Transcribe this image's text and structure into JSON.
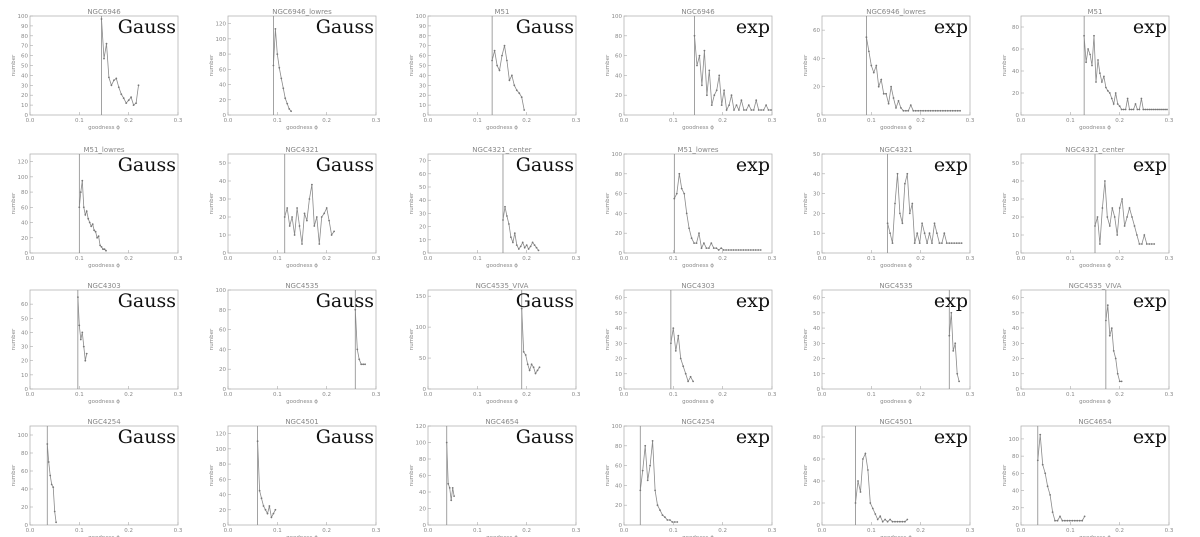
{
  "axis_text": {
    "xlabel": "goodness ϕ",
    "ylabel": "number"
  },
  "colors": {
    "line": "#8a8a8a",
    "axis": "#aaaaaa",
    "marker": "#777777",
    "label": "#111111"
  },
  "chart_data": [
    {
      "type": "line",
      "title": "NGC6946",
      "fit": "Gauss",
      "xlim": [
        0,
        0.3
      ],
      "ylim": [
        0,
        100
      ],
      "yticks": [
        0,
        10,
        20,
        30,
        40,
        50,
        60,
        70,
        80,
        90,
        100
      ],
      "vline": 0.145,
      "x": [
        0.145,
        0.15,
        0.155,
        0.16,
        0.165,
        0.17,
        0.175,
        0.18,
        0.185,
        0.19,
        0.195,
        0.2,
        0.205,
        0.21,
        0.215,
        0.22
      ],
      "y": [
        97,
        57,
        72,
        38,
        30,
        35,
        37,
        28,
        21,
        17,
        12,
        15,
        18,
        10,
        12,
        30
      ]
    },
    {
      "type": "line",
      "title": "NGC6946_lowres",
      "fit": "Gauss",
      "xlim": [
        0,
        0.3
      ],
      "ylim": [
        0,
        130
      ],
      "yticks": [
        0,
        20,
        40,
        60,
        80,
        100,
        120
      ],
      "vline": 0.092,
      "x": [
        0.092,
        0.096,
        0.1,
        0.104,
        0.108,
        0.112,
        0.116,
        0.12,
        0.124,
        0.128
      ],
      "y": [
        65,
        113,
        80,
        62,
        48,
        35,
        22,
        15,
        8,
        5
      ]
    },
    {
      "type": "line",
      "title": "M51",
      "fit": "Gauss",
      "xlim": [
        0,
        0.3
      ],
      "ylim": [
        0,
        100
      ],
      "yticks": [
        0,
        10,
        20,
        30,
        40,
        50,
        60,
        70,
        80,
        90,
        100
      ],
      "vline": 0.13,
      "x": [
        0.13,
        0.135,
        0.14,
        0.145,
        0.15,
        0.155,
        0.16,
        0.165,
        0.17,
        0.175,
        0.18,
        0.185,
        0.19,
        0.195
      ],
      "y": [
        55,
        65,
        50,
        45,
        60,
        70,
        55,
        35,
        40,
        30,
        25,
        22,
        18,
        5
      ]
    },
    {
      "type": "line",
      "title": "NGC6946",
      "fit": "exp",
      "xlim": [
        0,
        0.3
      ],
      "ylim": [
        0,
        100
      ],
      "yticks": [
        0,
        20,
        40,
        60,
        80,
        100
      ],
      "vline": 0.143,
      "x": [
        0.143,
        0.148,
        0.153,
        0.158,
        0.163,
        0.168,
        0.173,
        0.178,
        0.183,
        0.188,
        0.193,
        0.198,
        0.203,
        0.208,
        0.213,
        0.218,
        0.223,
        0.228,
        0.233,
        0.238,
        0.243,
        0.248,
        0.253,
        0.258,
        0.263,
        0.268,
        0.273,
        0.278,
        0.283,
        0.288,
        0.293,
        0.298
      ],
      "y": [
        80,
        50,
        60,
        30,
        65,
        20,
        45,
        10,
        20,
        25,
        40,
        10,
        25,
        5,
        10,
        20,
        5,
        10,
        5,
        15,
        5,
        5,
        10,
        5,
        5,
        15,
        5,
        5,
        5,
        10,
        5,
        5
      ]
    },
    {
      "type": "line",
      "title": "NGC6946_lowres",
      "fit": "exp",
      "xlim": [
        0,
        0.3
      ],
      "ylim": [
        0,
        70
      ],
      "yticks": [
        0,
        20,
        40,
        60
      ],
      "vline": 0.09,
      "x": [
        0.09,
        0.095,
        0.1,
        0.105,
        0.11,
        0.115,
        0.12,
        0.125,
        0.13,
        0.135,
        0.14,
        0.145,
        0.15,
        0.155,
        0.16,
        0.165,
        0.17,
        0.175,
        0.18,
        0.185,
        0.19,
        0.195,
        0.2,
        0.205,
        0.21,
        0.215,
        0.22,
        0.225,
        0.23,
        0.235,
        0.24,
        0.245,
        0.25,
        0.255,
        0.26,
        0.265,
        0.27,
        0.275,
        0.28
      ],
      "y": [
        55,
        45,
        35,
        30,
        35,
        20,
        25,
        15,
        15,
        8,
        20,
        12,
        5,
        10,
        5,
        3,
        3,
        3,
        7,
        3,
        3,
        3,
        3,
        3,
        3,
        3,
        3,
        3,
        3,
        3,
        3,
        3,
        3,
        3,
        3,
        3,
        3,
        3,
        3
      ]
    },
    {
      "type": "line",
      "title": "M51",
      "fit": "exp",
      "xlim": [
        0,
        0.3
      ],
      "ylim": [
        0,
        90
      ],
      "yticks": [
        0,
        20,
        40,
        60,
        80
      ],
      "vline": 0.128,
      "x": [
        0.128,
        0.132,
        0.136,
        0.14,
        0.144,
        0.148,
        0.152,
        0.156,
        0.16,
        0.164,
        0.168,
        0.172,
        0.176,
        0.18,
        0.184,
        0.188,
        0.192,
        0.196,
        0.2,
        0.204,
        0.208,
        0.212,
        0.216,
        0.22,
        0.224,
        0.228,
        0.232,
        0.236,
        0.24,
        0.244,
        0.248,
        0.252,
        0.256,
        0.26,
        0.264,
        0.268,
        0.272,
        0.276,
        0.28,
        0.284,
        0.288,
        0.292,
        0.296
      ],
      "y": [
        72,
        48,
        60,
        55,
        45,
        72,
        30,
        50,
        38,
        30,
        35,
        25,
        22,
        20,
        15,
        10,
        20,
        10,
        8,
        5,
        5,
        5,
        15,
        5,
        5,
        5,
        10,
        5,
        5,
        15,
        5,
        5,
        5,
        5,
        5,
        5,
        5,
        5,
        5,
        5,
        5,
        5,
        5
      ]
    },
    {
      "type": "line",
      "title": "M51_lowres",
      "fit": "Gauss",
      "xlim": [
        0,
        0.3
      ],
      "ylim": [
        0,
        130
      ],
      "yticks": [
        0,
        20,
        40,
        60,
        80,
        100,
        120
      ],
      "vline": 0.1,
      "x": [
        0.1,
        0.103,
        0.106,
        0.109,
        0.112,
        0.115,
        0.118,
        0.121,
        0.124,
        0.127,
        0.13,
        0.133,
        0.136,
        0.139,
        0.142,
        0.145,
        0.148,
        0.151,
        0.154
      ],
      "y": [
        60,
        80,
        95,
        60,
        50,
        55,
        45,
        40,
        35,
        38,
        30,
        28,
        20,
        22,
        10,
        8,
        5,
        5,
        3
      ]
    },
    {
      "type": "line",
      "title": "NGC4321",
      "fit": "Gauss",
      "xlim": [
        0,
        0.3
      ],
      "ylim": [
        0,
        55
      ],
      "yticks": [
        0,
        10,
        20,
        30,
        40,
        50
      ],
      "vline": 0.115,
      "x": [
        0.115,
        0.12,
        0.125,
        0.13,
        0.135,
        0.14,
        0.145,
        0.15,
        0.155,
        0.16,
        0.165,
        0.17,
        0.175,
        0.18,
        0.185,
        0.19,
        0.195,
        0.2,
        0.205,
        0.21,
        0.215
      ],
      "y": [
        20,
        25,
        15,
        20,
        10,
        25,
        15,
        5,
        22,
        18,
        30,
        38,
        15,
        20,
        5,
        20,
        22,
        25,
        18,
        10,
        12
      ]
    },
    {
      "type": "line",
      "title": "NGC4321_center",
      "fit": "Gauss",
      "xlim": [
        0,
        0.3
      ],
      "ylim": [
        0,
        75
      ],
      "yticks": [
        0,
        10,
        20,
        30,
        40,
        50,
        60,
        70
      ],
      "vline": 0.152,
      "x": [
        0.152,
        0.156,
        0.16,
        0.164,
        0.168,
        0.172,
        0.176,
        0.18,
        0.184,
        0.188,
        0.192,
        0.196,
        0.2,
        0.204,
        0.208,
        0.212,
        0.216,
        0.22,
        0.224
      ],
      "y": [
        25,
        35,
        28,
        22,
        12,
        8,
        15,
        6,
        3,
        5,
        8,
        4,
        6,
        3,
        5,
        8,
        6,
        4,
        2
      ]
    },
    {
      "type": "line",
      "title": "M51_lowres",
      "fit": "exp",
      "xlim": [
        0,
        0.3
      ],
      "ylim": [
        0,
        100
      ],
      "yticks": [
        0,
        20,
        40,
        60,
        80,
        100
      ],
      "vline": 0.102,
      "x": [
        0.102,
        0.107,
        0.112,
        0.117,
        0.122,
        0.127,
        0.132,
        0.137,
        0.142,
        0.147,
        0.152,
        0.157,
        0.162,
        0.167,
        0.172,
        0.177,
        0.182,
        0.187,
        0.192,
        0.197,
        0.202,
        0.207,
        0.212,
        0.217,
        0.222,
        0.227,
        0.232,
        0.237,
        0.242,
        0.247,
        0.252,
        0.257,
        0.262,
        0.267,
        0.272,
        0.277
      ],
      "y": [
        55,
        60,
        80,
        65,
        60,
        40,
        25,
        15,
        10,
        10,
        20,
        5,
        10,
        5,
        5,
        10,
        5,
        5,
        3,
        5,
        3,
        3,
        3,
        3,
        3,
        3,
        3,
        3,
        3,
        3,
        3,
        3,
        3,
        3,
        3,
        3
      ]
    },
    {
      "type": "line",
      "title": "NGC4321",
      "fit": "exp",
      "xlim": [
        0,
        0.3
      ],
      "ylim": [
        0,
        50
      ],
      "yticks": [
        0,
        10,
        20,
        30,
        40,
        50
      ],
      "vline": 0.133,
      "x": [
        0.133,
        0.138,
        0.143,
        0.148,
        0.153,
        0.158,
        0.163,
        0.168,
        0.173,
        0.178,
        0.183,
        0.188,
        0.193,
        0.198,
        0.203,
        0.208,
        0.213,
        0.218,
        0.223,
        0.228,
        0.233,
        0.238,
        0.243,
        0.248,
        0.253,
        0.258,
        0.263,
        0.268,
        0.273,
        0.278,
        0.283
      ],
      "y": [
        15,
        10,
        5,
        25,
        40,
        20,
        15,
        35,
        40,
        20,
        25,
        5,
        10,
        5,
        15,
        10,
        5,
        10,
        5,
        15,
        10,
        5,
        5,
        10,
        5,
        5,
        5,
        5,
        5,
        5,
        5
      ]
    },
    {
      "type": "line",
      "title": "NGC4321_center",
      "fit": "exp",
      "xlim": [
        0,
        0.3
      ],
      "ylim": [
        0,
        55
      ],
      "yticks": [
        0,
        10,
        20,
        30,
        40,
        50
      ],
      "vline": 0.15,
      "x": [
        0.15,
        0.155,
        0.16,
        0.165,
        0.17,
        0.175,
        0.18,
        0.185,
        0.19,
        0.195,
        0.2,
        0.205,
        0.21,
        0.215,
        0.22,
        0.225,
        0.23,
        0.235,
        0.24,
        0.245,
        0.25,
        0.255,
        0.26,
        0.265,
        0.27
      ],
      "y": [
        15,
        20,
        5,
        25,
        40,
        20,
        15,
        25,
        20,
        10,
        25,
        30,
        15,
        20,
        25,
        20,
        15,
        10,
        5,
        5,
        10,
        5,
        5,
        5,
        5
      ]
    },
    {
      "type": "line",
      "title": "NGC4303",
      "fit": "Gauss",
      "xlim": [
        0,
        0.3
      ],
      "ylim": [
        0,
        70
      ],
      "yticks": [
        0,
        10,
        20,
        30,
        40,
        50,
        60
      ],
      "vline": 0.097,
      "x": [
        0.097,
        0.1,
        0.103,
        0.106,
        0.109,
        0.112,
        0.115
      ],
      "y": [
        65,
        45,
        35,
        40,
        30,
        20,
        25
      ]
    },
    {
      "type": "line",
      "title": "NGC4535",
      "fit": "Gauss",
      "xlim": [
        0,
        0.3
      ],
      "ylim": [
        0,
        100
      ],
      "yticks": [
        0,
        20,
        40,
        60,
        80,
        100
      ],
      "vline": 0.258,
      "x": [
        0.258,
        0.262,
        0.266,
        0.27,
        0.274,
        0.278
      ],
      "y": [
        80,
        40,
        30,
        25,
        25,
        25
      ]
    },
    {
      "type": "line",
      "title": "NGC4535_VIVA",
      "fit": "Gauss",
      "xlim": [
        0,
        0.3
      ],
      "ylim": [
        0,
        160
      ],
      "yticks": [
        0,
        50,
        100,
        150
      ],
      "vline": 0.19,
      "x": [
        0.19,
        0.194,
        0.198,
        0.202,
        0.206,
        0.21,
        0.214,
        0.218,
        0.222,
        0.226
      ],
      "y": [
        130,
        60,
        55,
        40,
        30,
        40,
        35,
        25,
        30,
        35
      ]
    },
    {
      "type": "line",
      "title": "NGC4303",
      "fit": "exp",
      "xlim": [
        0,
        0.3
      ],
      "ylim": [
        0,
        65
      ],
      "yticks": [
        0,
        10,
        20,
        30,
        40,
        50,
        60
      ],
      "vline": 0.095,
      "x": [
        0.095,
        0.1,
        0.105,
        0.11,
        0.115,
        0.12,
        0.125,
        0.13,
        0.135,
        0.14
      ],
      "y": [
        30,
        40,
        25,
        35,
        20,
        15,
        10,
        5,
        8,
        5
      ]
    },
    {
      "type": "line",
      "title": "NGC4535",
      "fit": "exp",
      "xlim": [
        0,
        0.3
      ],
      "ylim": [
        0,
        65
      ],
      "yticks": [
        0,
        10,
        20,
        30,
        40,
        50,
        60
      ],
      "vline": 0.258,
      "x": [
        0.258,
        0.262,
        0.266,
        0.27,
        0.274,
        0.278
      ],
      "y": [
        35,
        50,
        25,
        30,
        10,
        5
      ]
    },
    {
      "type": "line",
      "title": "NGC4535_VIVA",
      "fit": "exp",
      "xlim": [
        0,
        0.3
      ],
      "ylim": [
        0,
        65
      ],
      "yticks": [
        0,
        10,
        20,
        30,
        40,
        50,
        60
      ],
      "vline": 0.172,
      "x": [
        0.172,
        0.176,
        0.18,
        0.184,
        0.188,
        0.192,
        0.196,
        0.2,
        0.204
      ],
      "y": [
        45,
        55,
        35,
        40,
        25,
        20,
        10,
        5,
        5
      ]
    },
    {
      "type": "line",
      "title": "NGC4254",
      "fit": "Gauss",
      "xlim": [
        0,
        0.3
      ],
      "ylim": [
        0,
        110
      ],
      "yticks": [
        0,
        20,
        40,
        60,
        80,
        100
      ],
      "vline": 0.035,
      "x": [
        0.035,
        0.038,
        0.041,
        0.044,
        0.047,
        0.05,
        0.053
      ],
      "y": [
        90,
        70,
        55,
        45,
        42,
        15,
        3
      ]
    },
    {
      "type": "line",
      "title": "NGC4501",
      "fit": "Gauss",
      "xlim": [
        0,
        0.3
      ],
      "ylim": [
        0,
        130
      ],
      "yticks": [
        0,
        20,
        40,
        60,
        80,
        100,
        120
      ],
      "vline": 0.06,
      "x": [
        0.06,
        0.064,
        0.068,
        0.072,
        0.076,
        0.08,
        0.084,
        0.088,
        0.092,
        0.096
      ],
      "y": [
        110,
        45,
        35,
        25,
        20,
        15,
        25,
        10,
        15,
        20
      ]
    },
    {
      "type": "line",
      "title": "NGC4654",
      "fit": "Gauss",
      "xlim": [
        0,
        0.3
      ],
      "ylim": [
        0,
        120
      ],
      "yticks": [
        0,
        20,
        40,
        60,
        80,
        100,
        120
      ],
      "vline": 0.038,
      "x": [
        0.038,
        0.041,
        0.044,
        0.047,
        0.05,
        0.053
      ],
      "y": [
        100,
        50,
        45,
        30,
        45,
        35
      ]
    },
    {
      "type": "line",
      "title": "NGC4254",
      "fit": "exp",
      "xlim": [
        0,
        0.3
      ],
      "ylim": [
        0,
        100
      ],
      "yticks": [
        0,
        20,
        40,
        60,
        80,
        100
      ],
      "vline": 0.033,
      "x": [
        0.033,
        0.038,
        0.043,
        0.048,
        0.053,
        0.058,
        0.063,
        0.068,
        0.073,
        0.078,
        0.083,
        0.088,
        0.093,
        0.098,
        0.103,
        0.108
      ],
      "y": [
        35,
        55,
        80,
        45,
        60,
        85,
        35,
        20,
        15,
        10,
        8,
        5,
        5,
        3,
        3,
        3
      ]
    },
    {
      "type": "line",
      "title": "NGC4501",
      "fit": "exp",
      "xlim": [
        0,
        0.3
      ],
      "ylim": [
        0,
        90
      ],
      "yticks": [
        0,
        20,
        40,
        60,
        80
      ],
      "vline": 0.068,
      "x": [
        0.068,
        0.073,
        0.078,
        0.083,
        0.088,
        0.093,
        0.098,
        0.103,
        0.108,
        0.113,
        0.118,
        0.123,
        0.128,
        0.133,
        0.138,
        0.143,
        0.148,
        0.153,
        0.158,
        0.163,
        0.168,
        0.173
      ],
      "y": [
        20,
        40,
        30,
        60,
        65,
        50,
        20,
        15,
        10,
        5,
        8,
        3,
        5,
        3,
        5,
        3,
        3,
        3,
        3,
        3,
        3,
        5
      ]
    },
    {
      "type": "line",
      "title": "NGC4654",
      "fit": "exp",
      "xlim": [
        0,
        0.3
      ],
      "ylim": [
        0,
        115
      ],
      "yticks": [
        0,
        20,
        40,
        60,
        80,
        100
      ],
      "vline": 0.034,
      "x": [
        0.034,
        0.039,
        0.044,
        0.049,
        0.054,
        0.059,
        0.064,
        0.069,
        0.074,
        0.079,
        0.084,
        0.089,
        0.094,
        0.099,
        0.104,
        0.109,
        0.114,
        0.119,
        0.124,
        0.129
      ],
      "y": [
        75,
        105,
        70,
        60,
        45,
        35,
        15,
        5,
        5,
        10,
        5,
        5,
        5,
        5,
        5,
        5,
        5,
        5,
        5,
        10
      ]
    }
  ]
}
